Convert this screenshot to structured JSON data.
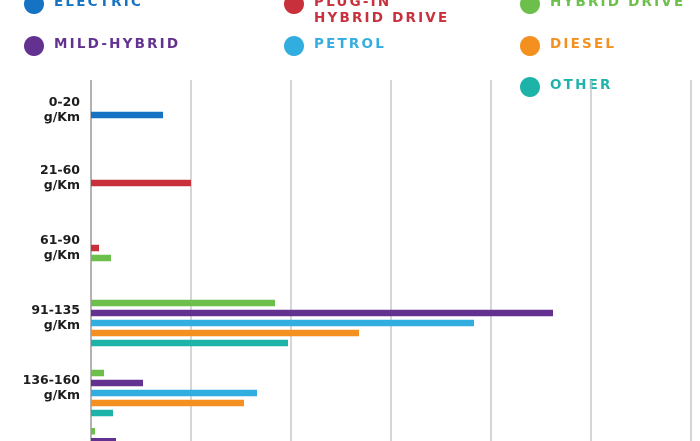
{
  "chart_data": {
    "type": "bar",
    "orientation": "horizontal",
    "title": "",
    "xlabel": "",
    "ylabel": "",
    "xlim": [
      0,
      6
    ],
    "grid": true,
    "legend_position": "top",
    "categories": [
      "0-20\ng/Km",
      "21-60\ng/Km",
      "61-90\ng/Km",
      "91-135\ng/Km",
      "136-160\ng/Km",
      ""
    ],
    "series": [
      {
        "name": "ELECTRIC",
        "color": "#1673c4",
        "values": [
          0.72,
          0,
          0,
          0,
          0,
          0
        ]
      },
      {
        "name": "PLUG-IN\nHYBRID DRIVE",
        "color": "#c8303b",
        "values": [
          0,
          1.0,
          0.08,
          0,
          0,
          0
        ]
      },
      {
        "name": "HYBRID DRIVE",
        "color": "#6cbf4a",
        "values": [
          0,
          0,
          0.2,
          1.84,
          0.13,
          0.04
        ]
      },
      {
        "name": "MILD-HYBRID",
        "color": "#63318f",
        "values": [
          0,
          0,
          0,
          4.62,
          0.52,
          0.25
        ]
      },
      {
        "name": "PETROL",
        "color": "#31ade0",
        "values": [
          0,
          0,
          0,
          3.83,
          1.66,
          null
        ]
      },
      {
        "name": "DIESEL",
        "color": "#f3901f",
        "values": [
          0,
          0,
          0,
          2.68,
          1.53,
          null
        ]
      },
      {
        "name": "OTHER",
        "color": "#1db3a8",
        "values": [
          0,
          0,
          0,
          1.97,
          0.22,
          null
        ]
      }
    ]
  }
}
